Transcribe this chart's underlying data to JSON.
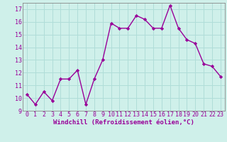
{
  "x": [
    0,
    1,
    2,
    3,
    4,
    5,
    6,
    7,
    8,
    9,
    10,
    11,
    12,
    13,
    14,
    15,
    16,
    17,
    18,
    19,
    20,
    21,
    22,
    23
  ],
  "y": [
    10.3,
    9.5,
    10.5,
    9.8,
    11.5,
    11.5,
    12.2,
    9.5,
    11.5,
    13.0,
    15.9,
    15.5,
    15.5,
    16.5,
    16.2,
    15.5,
    15.5,
    17.3,
    15.5,
    14.6,
    14.3,
    12.7,
    12.5,
    11.7
  ],
  "line_color": "#990099",
  "marker": "D",
  "marker_size": 2.2,
  "line_width": 1.0,
  "background_color": "#cff0ea",
  "grid_color": "#b0ddd8",
  "xlabel": "Windchill (Refroidissement éolien,°C)",
  "xlabel_fontsize": 6.5,
  "tick_label_color": "#990099",
  "tick_label_fontsize": 6,
  "ylim": [
    9,
    17.5
  ],
  "yticks": [
    9,
    10,
    11,
    12,
    13,
    14,
    15,
    16,
    17
  ],
  "xlim": [
    -0.5,
    23.5
  ],
  "xticks": [
    0,
    1,
    2,
    3,
    4,
    5,
    6,
    7,
    8,
    9,
    10,
    11,
    12,
    13,
    14,
    15,
    16,
    17,
    18,
    19,
    20,
    21,
    22,
    23
  ],
  "spine_color": "#888888"
}
